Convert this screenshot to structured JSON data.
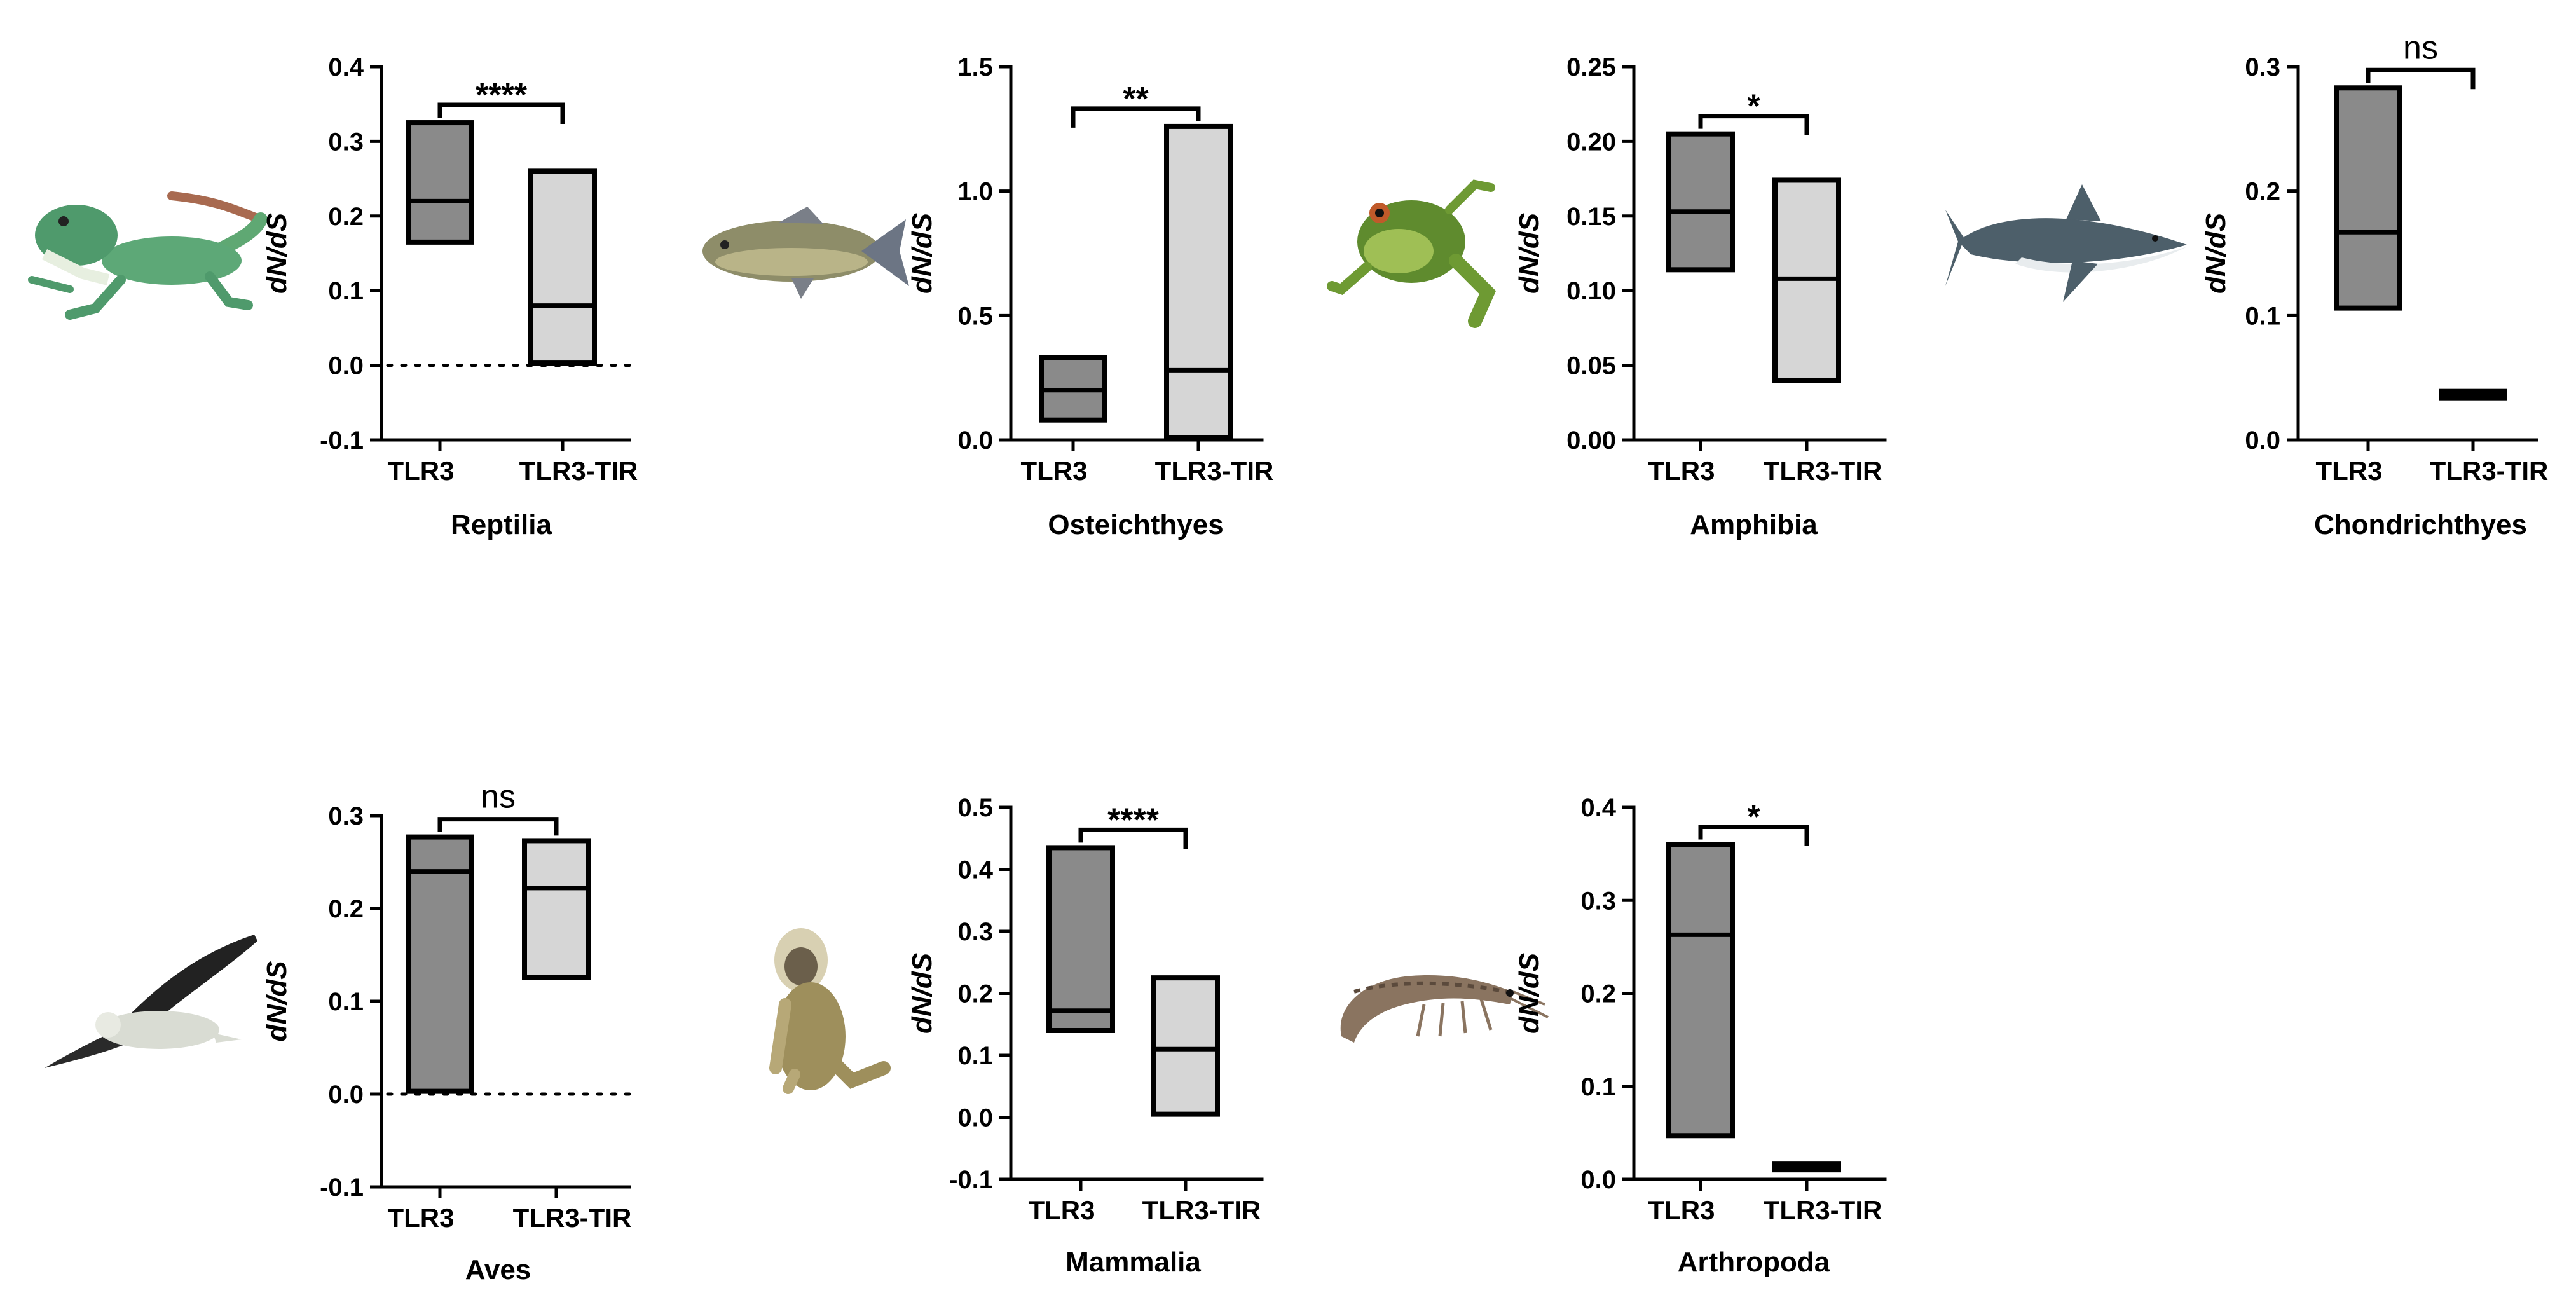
{
  "colors": {
    "tlr3": "#8a8a8a",
    "tlr3_tir": "#d6d6d6",
    "line": "#000000"
  },
  "chart_data": [
    {
      "type": "box",
      "title": "Reptilia",
      "ylabel": "dN/dS",
      "categories": [
        "TLR3",
        "TLR3-TIR"
      ],
      "ylim": [
        -0.1,
        0.4
      ],
      "yticks": [
        "-0.1",
        "0.0",
        "0.1",
        "0.2",
        "0.3",
        "0.4"
      ],
      "zero_line": true,
      "series": [
        {
          "name": "TLR3",
          "min": 0.165,
          "median": 0.22,
          "max": 0.325
        },
        {
          "name": "TLR3-TIR",
          "min": 0.003,
          "median": 0.08,
          "max": 0.26
        }
      ],
      "significance": "****",
      "animal": "lizard-icon"
    },
    {
      "type": "box",
      "title": "Osteichthyes",
      "ylabel": "dN/dS",
      "categories": [
        "TLR3",
        "TLR3-TIR"
      ],
      "ylim": [
        0.0,
        1.5
      ],
      "yticks": [
        "0.0",
        "0.5",
        "1.0",
        "1.5"
      ],
      "zero_line": false,
      "series": [
        {
          "name": "TLR3",
          "min": 0.08,
          "median": 0.2,
          "max": 0.33
        },
        {
          "name": "TLR3-TIR",
          "min": 0.01,
          "median": 0.28,
          "max": 1.26
        }
      ],
      "significance": "**",
      "animal": "fish-icon"
    },
    {
      "type": "box",
      "title": "Amphibia",
      "ylabel": "dN/dS",
      "categories": [
        "TLR3",
        "TLR3-TIR"
      ],
      "ylim": [
        0.0,
        0.25
      ],
      "yticks": [
        "0.00",
        "0.05",
        "0.10",
        "0.15",
        "0.20",
        "0.25"
      ],
      "zero_line": false,
      "series": [
        {
          "name": "TLR3",
          "min": 0.114,
          "median": 0.153,
          "max": 0.205
        },
        {
          "name": "TLR3-TIR",
          "min": 0.04,
          "median": 0.108,
          "max": 0.174
        }
      ],
      "significance": "*",
      "animal": "frog-icon"
    },
    {
      "type": "box",
      "title": "Chondrichthyes",
      "ylabel": "dN/dS",
      "categories": [
        "TLR3",
        "TLR3-TIR"
      ],
      "ylim": [
        0.0,
        0.3
      ],
      "yticks": [
        "0.0",
        "0.1",
        "0.2",
        "0.3"
      ],
      "zero_line": false,
      "series": [
        {
          "name": "TLR3",
          "min": 0.106,
          "median": 0.167,
          "max": 0.283
        },
        {
          "name": "TLR3-TIR",
          "min": 0.037,
          "median": 0.038,
          "max": 0.039
        }
      ],
      "significance": "ns",
      "animal": "shark-icon"
    },
    {
      "type": "box",
      "title": "Aves",
      "ylabel": "dN/dS",
      "categories": [
        "TLR3",
        "TLR3-TIR"
      ],
      "ylim": [
        -0.1,
        0.3
      ],
      "yticks": [
        "-0.1",
        "0.0",
        "0.1",
        "0.2",
        "0.3"
      ],
      "zero_line": true,
      "series": [
        {
          "name": "TLR3",
          "min": 0.003,
          "median": 0.24,
          "max": 0.277
        },
        {
          "name": "TLR3-TIR",
          "min": 0.126,
          "median": 0.222,
          "max": 0.273
        }
      ],
      "significance": "ns",
      "animal": "bird-icon"
    },
    {
      "type": "box",
      "title": "Mammalia",
      "ylabel": "dN/dS",
      "categories": [
        "TLR3",
        "TLR3-TIR"
      ],
      "ylim": [
        -0.1,
        0.5
      ],
      "yticks": [
        "-0.1",
        "0.0",
        "0.1",
        "0.2",
        "0.3",
        "0.4",
        "0.5"
      ],
      "zero_line": false,
      "series": [
        {
          "name": "TLR3",
          "min": 0.14,
          "median": 0.172,
          "max": 0.435
        },
        {
          "name": "TLR3-TIR",
          "min": 0.005,
          "median": 0.11,
          "max": 0.225
        }
      ],
      "significance": "****",
      "animal": "monkey-icon"
    },
    {
      "type": "box",
      "title": "Arthropoda",
      "ylabel": "dN/dS",
      "categories": [
        "TLR3",
        "TLR3-TIR"
      ],
      "ylim": [
        0.0,
        0.4
      ],
      "yticks": [
        "0.0",
        "0.1",
        "0.2",
        "0.3",
        "0.4"
      ],
      "zero_line": false,
      "series": [
        {
          "name": "TLR3",
          "min": 0.047,
          "median": 0.263,
          "max": 0.36
        },
        {
          "name": "TLR3-TIR",
          "min": 0.013,
          "median": 0.015,
          "max": 0.017
        }
      ],
      "significance": "*",
      "animal": "shrimp-icon"
    }
  ]
}
